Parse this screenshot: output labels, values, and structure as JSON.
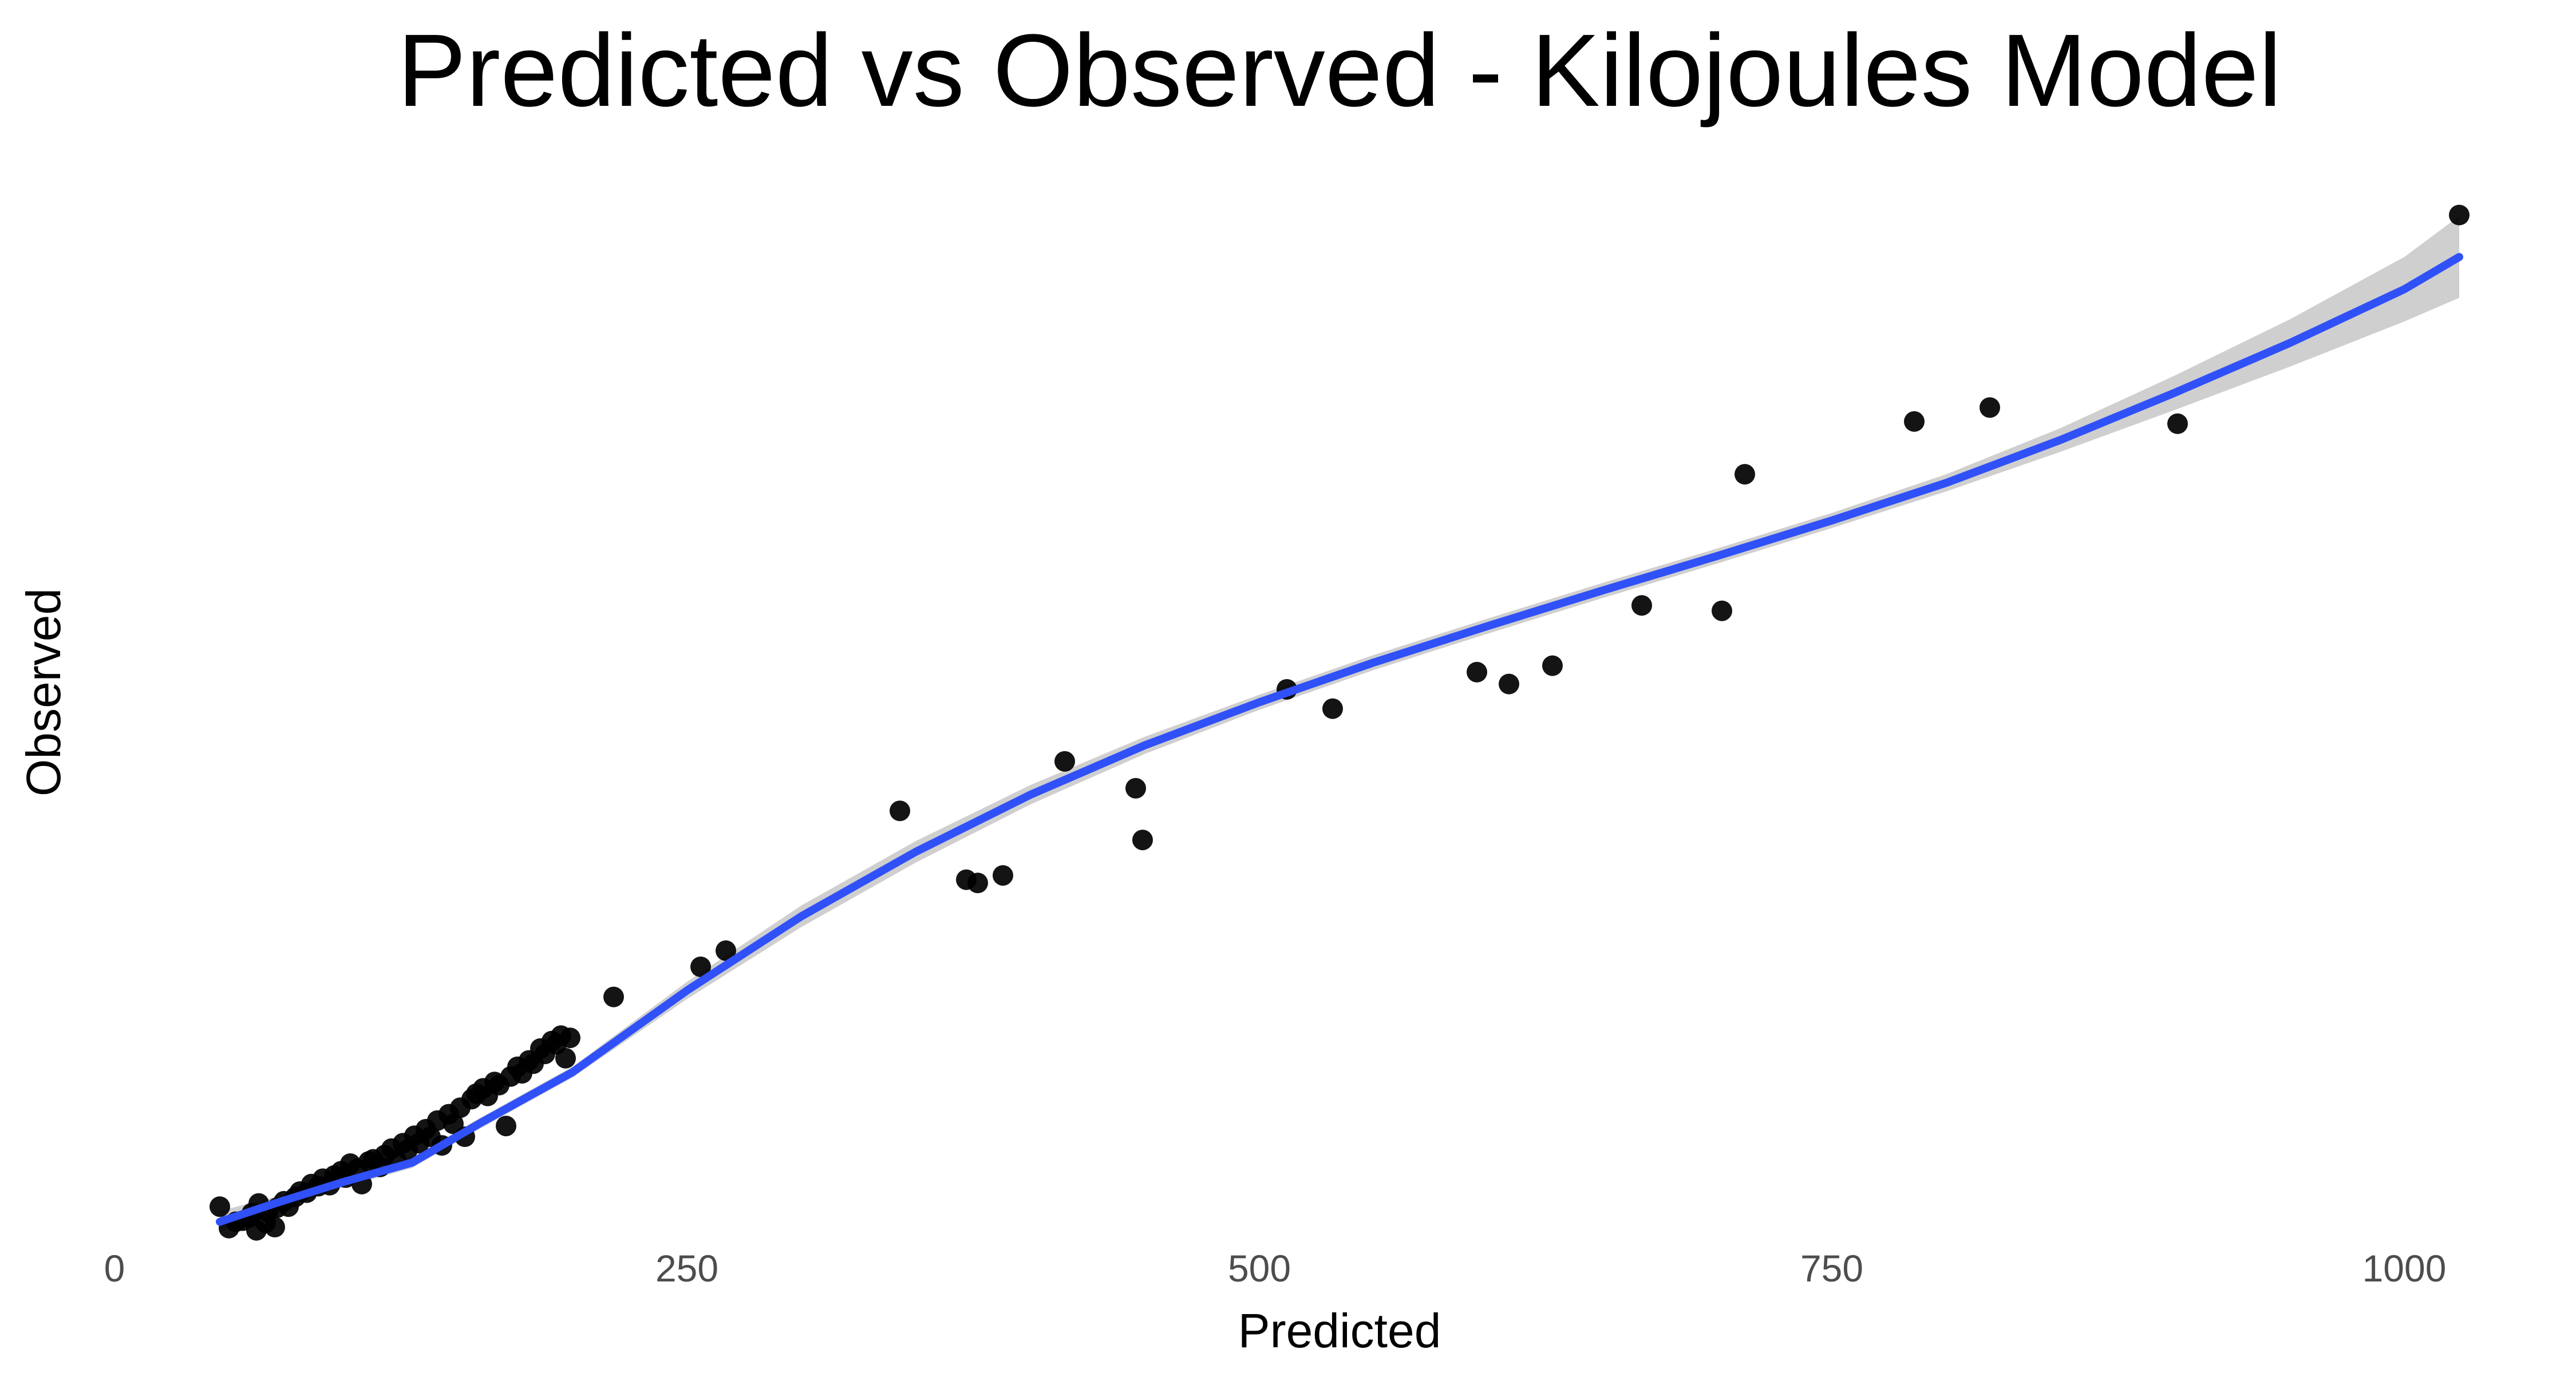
{
  "chart_data": {
    "type": "scatter",
    "title": "Predicted vs Observed - Kilojoules Model",
    "xlabel": "Predicted",
    "ylabel": "Observed",
    "xlim": [
      0,
      1050
    ],
    "ylim": [
      0,
      1000
    ],
    "x_ticks": [
      0,
      250,
      500,
      750,
      1000
    ],
    "x_tick_labels": [
      "0",
      "250",
      "500",
      "750",
      "1000"
    ],
    "y_ticks": [],
    "grid": false,
    "legend": "none",
    "colors": {
      "points": "#000000",
      "smooth_line": "#3050f8",
      "confidence_band": "#cccccc"
    },
    "points": [
      {
        "x": 46,
        "y": 27
      },
      {
        "x": 50,
        "y": 7
      },
      {
        "x": 53,
        "y": 13
      },
      {
        "x": 56,
        "y": 14
      },
      {
        "x": 59,
        "y": 17
      },
      {
        "x": 60,
        "y": 21
      },
      {
        "x": 62,
        "y": 5
      },
      {
        "x": 63,
        "y": 30
      },
      {
        "x": 66,
        "y": 12
      },
      {
        "x": 67,
        "y": 22
      },
      {
        "x": 70,
        "y": 8
      },
      {
        "x": 71,
        "y": 26
      },
      {
        "x": 74,
        "y": 32
      },
      {
        "x": 76,
        "y": 27
      },
      {
        "x": 79,
        "y": 36
      },
      {
        "x": 81,
        "y": 41
      },
      {
        "x": 84,
        "y": 40
      },
      {
        "x": 86,
        "y": 48
      },
      {
        "x": 89,
        "y": 46
      },
      {
        "x": 91,
        "y": 53
      },
      {
        "x": 94,
        "y": 47
      },
      {
        "x": 96,
        "y": 56
      },
      {
        "x": 99,
        "y": 60
      },
      {
        "x": 101,
        "y": 54
      },
      {
        "x": 103,
        "y": 67
      },
      {
        "x": 106,
        "y": 62
      },
      {
        "x": 108,
        "y": 48
      },
      {
        "x": 111,
        "y": 69
      },
      {
        "x": 113,
        "y": 71
      },
      {
        "x": 116,
        "y": 64
      },
      {
        "x": 118,
        "y": 75
      },
      {
        "x": 121,
        "y": 81
      },
      {
        "x": 123,
        "y": 70
      },
      {
        "x": 126,
        "y": 86
      },
      {
        "x": 128,
        "y": 80
      },
      {
        "x": 131,
        "y": 93
      },
      {
        "x": 133,
        "y": 86
      },
      {
        "x": 136,
        "y": 99
      },
      {
        "x": 138,
        "y": 92
      },
      {
        "x": 141,
        "y": 107
      },
      {
        "x": 143,
        "y": 84
      },
      {
        "x": 146,
        "y": 113
      },
      {
        "x": 148,
        "y": 104
      },
      {
        "x": 151,
        "y": 119
      },
      {
        "x": 153,
        "y": 92
      },
      {
        "x": 156,
        "y": 127
      },
      {
        "x": 158,
        "y": 132
      },
      {
        "x": 161,
        "y": 137
      },
      {
        "x": 163,
        "y": 130
      },
      {
        "x": 166,
        "y": 143
      },
      {
        "x": 168,
        "y": 140
      },
      {
        "x": 171,
        "y": 102
      },
      {
        "x": 173,
        "y": 148
      },
      {
        "x": 176,
        "y": 157
      },
      {
        "x": 178,
        "y": 151
      },
      {
        "x": 181,
        "y": 163
      },
      {
        "x": 183,
        "y": 160
      },
      {
        "x": 186,
        "y": 174
      },
      {
        "x": 188,
        "y": 169
      },
      {
        "x": 191,
        "y": 181
      },
      {
        "x": 193,
        "y": 178
      },
      {
        "x": 195,
        "y": 186
      },
      {
        "x": 197,
        "y": 165
      },
      {
        "x": 199,
        "y": 184
      },
      {
        "x": 218,
        "y": 222
      },
      {
        "x": 256,
        "y": 250
      },
      {
        "x": 267,
        "y": 265
      },
      {
        "x": 343,
        "y": 395
      },
      {
        "x": 372,
        "y": 331
      },
      {
        "x": 377,
        "y": 328
      },
      {
        "x": 388,
        "y": 335
      },
      {
        "x": 415,
        "y": 441
      },
      {
        "x": 446,
        "y": 416
      },
      {
        "x": 449,
        "y": 368
      },
      {
        "x": 512,
        "y": 508
      },
      {
        "x": 532,
        "y": 490
      },
      {
        "x": 595,
        "y": 524
      },
      {
        "x": 609,
        "y": 513
      },
      {
        "x": 628,
        "y": 530
      },
      {
        "x": 667,
        "y": 586
      },
      {
        "x": 702,
        "y": 581
      },
      {
        "x": 712,
        "y": 708
      },
      {
        "x": 786,
        "y": 757
      },
      {
        "x": 819,
        "y": 770
      },
      {
        "x": 901,
        "y": 755
      },
      {
        "x": 1024,
        "y": 949
      }
    ],
    "smooth_line": [
      {
        "x": 46,
        "y": 13
      },
      {
        "x": 70,
        "y": 30
      },
      {
        "x": 100,
        "y": 50
      },
      {
        "x": 130,
        "y": 68
      },
      {
        "x": 160,
        "y": 105
      },
      {
        "x": 200,
        "y": 152
      },
      {
        "x": 250,
        "y": 228
      },
      {
        "x": 300,
        "y": 297
      },
      {
        "x": 350,
        "y": 357
      },
      {
        "x": 400,
        "y": 410
      },
      {
        "x": 450,
        "y": 456
      },
      {
        "x": 500,
        "y": 496
      },
      {
        "x": 550,
        "y": 533
      },
      {
        "x": 600,
        "y": 567
      },
      {
        "x": 650,
        "y": 600
      },
      {
        "x": 700,
        "y": 632
      },
      {
        "x": 750,
        "y": 665
      },
      {
        "x": 800,
        "y": 700
      },
      {
        "x": 850,
        "y": 740
      },
      {
        "x": 900,
        "y": 784
      },
      {
        "x": 950,
        "y": 830
      },
      {
        "x": 1000,
        "y": 880
      },
      {
        "x": 1024,
        "y": 910
      }
    ],
    "confidence_band": [
      {
        "x": 46,
        "lo": 3,
        "hi": 23
      },
      {
        "x": 70,
        "lo": 24,
        "hi": 36
      },
      {
        "x": 100,
        "lo": 45,
        "hi": 55
      },
      {
        "x": 130,
        "lo": 63,
        "hi": 73
      },
      {
        "x": 160,
        "lo": 100,
        "hi": 110
      },
      {
        "x": 200,
        "lo": 147,
        "hi": 157
      },
      {
        "x": 250,
        "lo": 220,
        "hi": 236
      },
      {
        "x": 300,
        "lo": 287,
        "hi": 307
      },
      {
        "x": 350,
        "lo": 347,
        "hi": 367
      },
      {
        "x": 400,
        "lo": 401,
        "hi": 419
      },
      {
        "x": 450,
        "lo": 448,
        "hi": 464
      },
      {
        "x": 500,
        "lo": 489,
        "hi": 503
      },
      {
        "x": 550,
        "lo": 526,
        "hi": 540
      },
      {
        "x": 600,
        "lo": 560,
        "hi": 574
      },
      {
        "x": 650,
        "lo": 593,
        "hi": 607
      },
      {
        "x": 700,
        "lo": 625,
        "hi": 639
      },
      {
        "x": 750,
        "lo": 658,
        "hi": 672
      },
      {
        "x": 800,
        "lo": 692,
        "hi": 708
      },
      {
        "x": 850,
        "lo": 729,
        "hi": 751
      },
      {
        "x": 900,
        "lo": 768,
        "hi": 800
      },
      {
        "x": 950,
        "lo": 808,
        "hi": 852
      },
      {
        "x": 1000,
        "lo": 850,
        "hi": 910
      },
      {
        "x": 1024,
        "lo": 872,
        "hi": 948
      }
    ]
  }
}
